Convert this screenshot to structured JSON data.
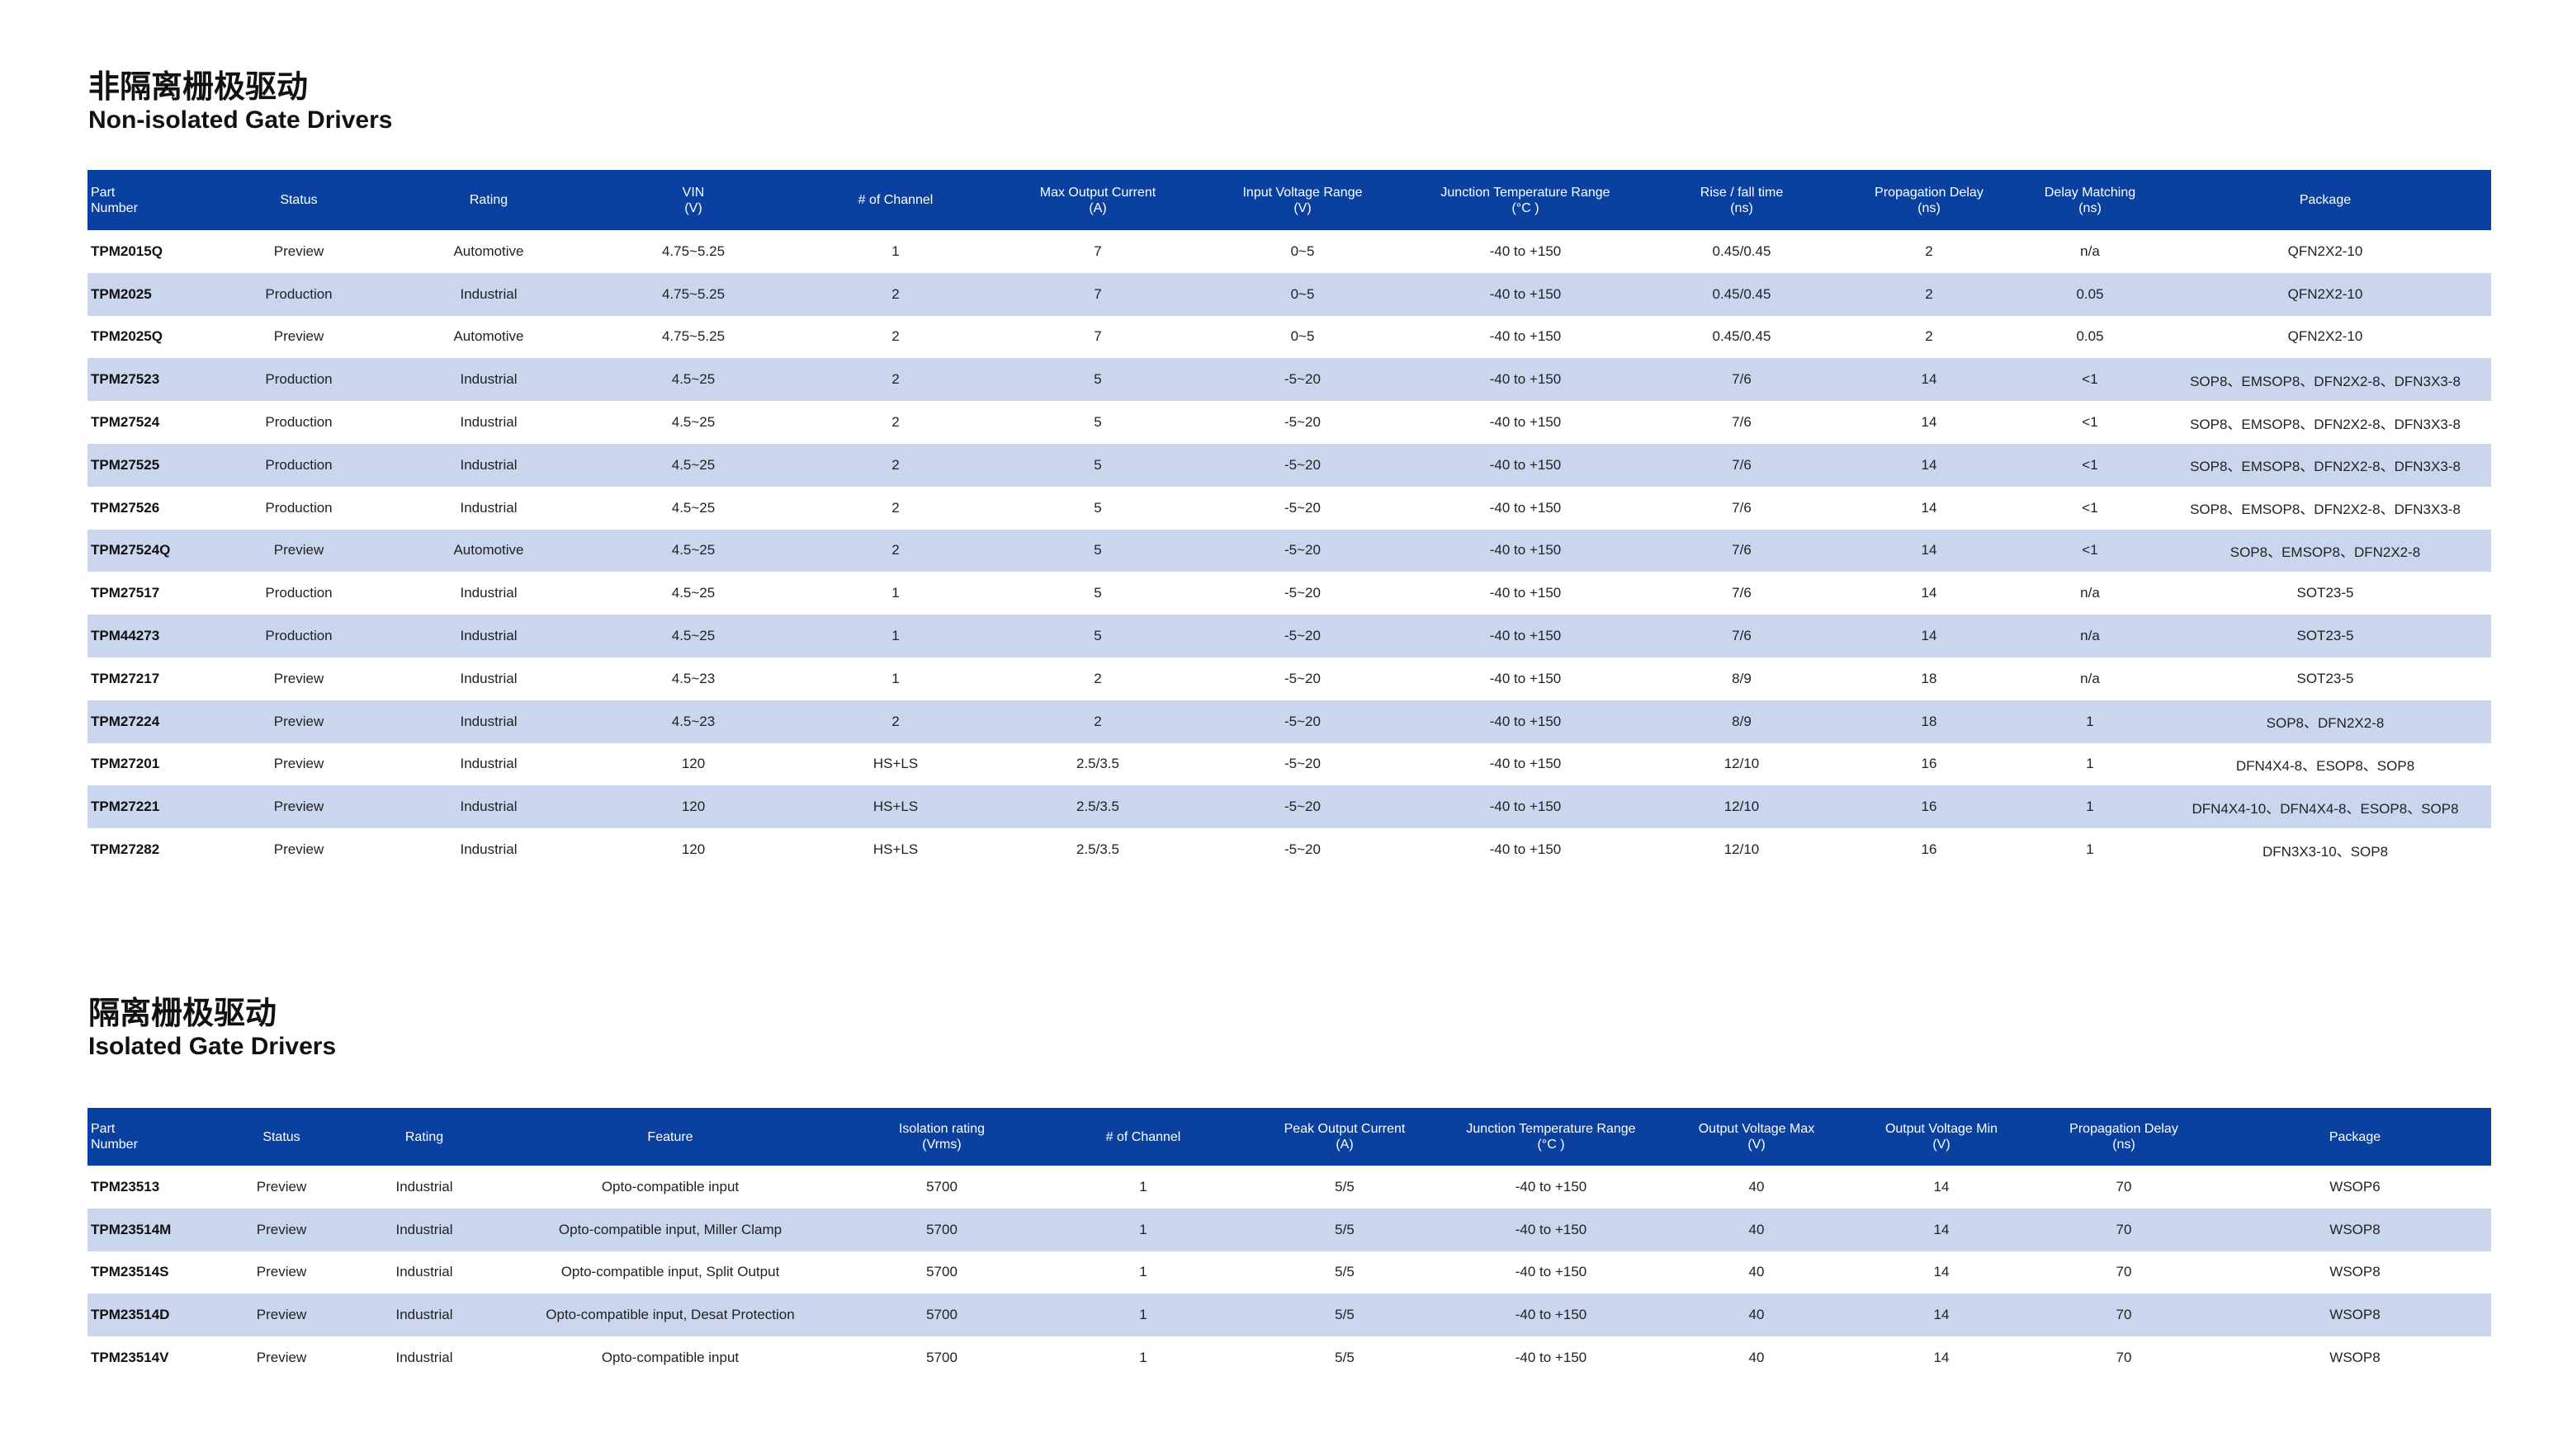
{
  "non_isolated": {
    "title_zh": "非隔离栅极驱动",
    "title_en": "Non-isolated Gate Drivers",
    "headers": [
      [
        "Part",
        "Number"
      ],
      [
        "Status"
      ],
      [
        "Rating"
      ],
      [
        "VIN",
        "(V)"
      ],
      [
        "# of Channel"
      ],
      [
        "Max Output Current",
        "(A)"
      ],
      [
        "Input Voltage Range",
        "(V)"
      ],
      [
        "Junction Temperature Range",
        "(°C )"
      ],
      [
        "Rise / fall time",
        "(ns)"
      ],
      [
        "Propagation Delay",
        "(ns)"
      ],
      [
        "Delay Matching",
        "(ns)"
      ],
      [
        "Package"
      ]
    ],
    "rows": [
      [
        "TPM2015Q",
        "Preview",
        "Automotive",
        "4.75~5.25",
        "1",
        "7",
        "0~5",
        "-40 to +150",
        "0.45/0.45",
        "2",
        "n/a",
        "QFN2X2-10"
      ],
      [
        "TPM2025",
        "Production",
        "Industrial",
        "4.75~5.25",
        "2",
        "7",
        "0~5",
        "-40 to +150",
        "0.45/0.45",
        "2",
        "0.05",
        "QFN2X2-10"
      ],
      [
        "TPM2025Q",
        "Preview",
        "Automotive",
        "4.75~5.25",
        "2",
        "7",
        "0~5",
        "-40 to +150",
        "0.45/0.45",
        "2",
        "0.05",
        "QFN2X2-10"
      ],
      [
        "TPM27523",
        "Production",
        "Industrial",
        "4.5~25",
        "2",
        "5",
        "-5~20",
        "-40 to +150",
        "7/6",
        "14",
        "<1",
        "SOP8、EMSOP8、DFN2X2-8、DFN3X3-8"
      ],
      [
        "TPM27524",
        "Production",
        "Industrial",
        "4.5~25",
        "2",
        "5",
        "-5~20",
        "-40 to +150",
        "7/6",
        "14",
        "<1",
        "SOP8、EMSOP8、DFN2X2-8、DFN3X3-8"
      ],
      [
        "TPM27525",
        "Production",
        "Industrial",
        "4.5~25",
        "2",
        "5",
        "-5~20",
        "-40 to +150",
        "7/6",
        "14",
        "<1",
        "SOP8、EMSOP8、DFN2X2-8、DFN3X3-8"
      ],
      [
        "TPM27526",
        "Production",
        "Industrial",
        "4.5~25",
        "2",
        "5",
        "-5~20",
        "-40 to +150",
        "7/6",
        "14",
        "<1",
        "SOP8、EMSOP8、DFN2X2-8、DFN3X3-8"
      ],
      [
        "TPM27524Q",
        "Preview",
        "Automotive",
        "4.5~25",
        "2",
        "5",
        "-5~20",
        "-40 to +150",
        "7/6",
        "14",
        "<1",
        "SOP8、EMSOP8、DFN2X2-8"
      ],
      [
        "TPM27517",
        "Production",
        "Industrial",
        "4.5~25",
        "1",
        "5",
        "-5~20",
        "-40 to +150",
        "7/6",
        "14",
        "n/a",
        "SOT23-5"
      ],
      [
        "TPM44273",
        "Production",
        "Industrial",
        "4.5~25",
        "1",
        "5",
        "-5~20",
        "-40 to +150",
        "7/6",
        "14",
        "n/a",
        "SOT23-5"
      ],
      [
        "TPM27217",
        "Preview",
        "Industrial",
        "4.5~23",
        "1",
        "2",
        "-5~20",
        "-40 to +150",
        "8/9",
        "18",
        "n/a",
        "SOT23-5"
      ],
      [
        "TPM27224",
        "Preview",
        "Industrial",
        "4.5~23",
        "2",
        "2",
        "-5~20",
        "-40 to +150",
        "8/9",
        "18",
        "1",
        "SOP8、DFN2X2-8"
      ],
      [
        "TPM27201",
        "Preview",
        "Industrial",
        "120",
        "HS+LS",
        "2.5/3.5",
        "-5~20",
        "-40 to +150",
        "12/10",
        "16",
        "1",
        "DFN4X4-8、ESOP8、SOP8"
      ],
      [
        "TPM27221",
        "Preview",
        "Industrial",
        "120",
        "HS+LS",
        "2.5/3.5",
        "-5~20",
        "-40 to +150",
        "12/10",
        "16",
        "1",
        "DFN4X4-10、DFN4X4-8、ESOP8、SOP8"
      ],
      [
        "TPM27282",
        "Preview",
        "Industrial",
        "120",
        "HS+LS",
        "2.5/3.5",
        "-5~20",
        "-40 to +150",
        "12/10",
        "16",
        "1",
        "DFN3X3-10、SOP8"
      ]
    ]
  },
  "isolated": {
    "title_zh": "隔离栅极驱动",
    "title_en": "Isolated Gate Drivers",
    "headers": [
      [
        "Part",
        "Number"
      ],
      [
        "Status"
      ],
      [
        "Rating"
      ],
      [
        "Feature"
      ],
      [
        "Isolation rating",
        "(Vrms)"
      ],
      [
        "# of Channel"
      ],
      [
        "Peak Output Current",
        "(A)"
      ],
      [
        "Junction Temperature Range",
        "(°C )"
      ],
      [
        "Output Voltage Max",
        "(V)"
      ],
      [
        "Output Voltage Min",
        "(V)"
      ],
      [
        "Propagation Delay",
        "(ns)"
      ],
      [
        "Package"
      ]
    ],
    "rows": [
      [
        "TPM23513",
        "Preview",
        "Industrial",
        "Opto-compatible input",
        "5700",
        "1",
        "5/5",
        "-40 to +150",
        "40",
        "14",
        "70",
        "WSOP6"
      ],
      [
        "TPM23514M",
        "Preview",
        "Industrial",
        "Opto-compatible input, Miller Clamp",
        "5700",
        "1",
        "5/5",
        "-40 to +150",
        "40",
        "14",
        "70",
        "WSOP8"
      ],
      [
        "TPM23514S",
        "Preview",
        "Industrial",
        "Opto-compatible input, Split Output",
        "5700",
        "1",
        "5/5",
        "-40 to +150",
        "40",
        "14",
        "70",
        "WSOP8"
      ],
      [
        "TPM23514D",
        "Preview",
        "Industrial",
        "Opto-compatible input, Desat Protection",
        "5700",
        "1",
        "5/5",
        "-40 to +150",
        "40",
        "14",
        "70",
        "WSOP8"
      ],
      [
        "TPM23514V",
        "Preview",
        "Industrial",
        "Opto-compatible input",
        "5700",
        "1",
        "5/5",
        "-40 to +150",
        "40",
        "14",
        "70",
        "WSOP8"
      ]
    ]
  },
  "colors": {
    "header_bg": "#0a40a0",
    "stripe_bg": "#c9d6ee",
    "header_text": "#ffffff"
  }
}
